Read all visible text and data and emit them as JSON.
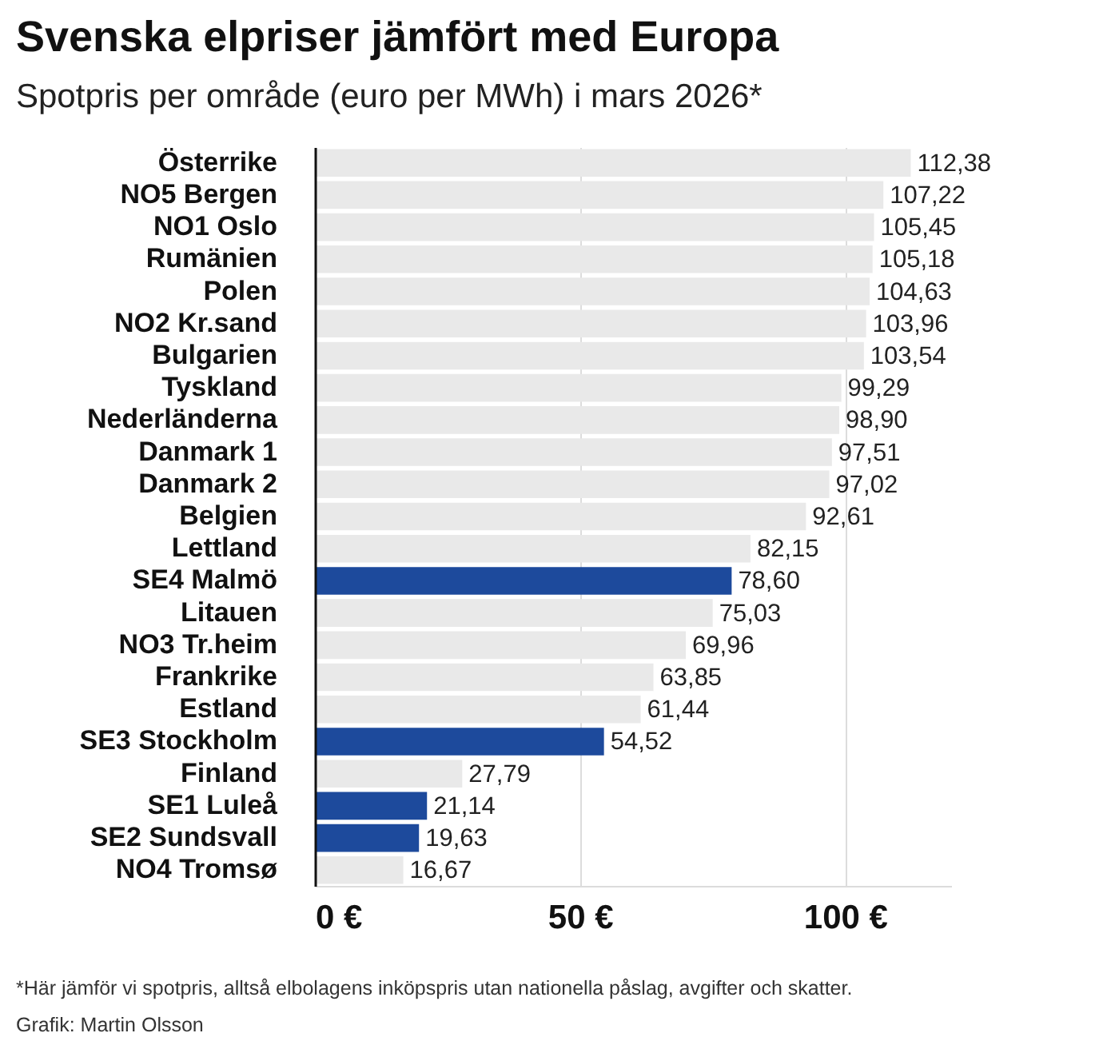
{
  "chart_data": {
    "type": "bar",
    "orientation": "horizontal",
    "title": "Svenska elpriser jämfört med Europa",
    "subtitle": "Spotpris per område (euro per MWh) i mars 2026*",
    "categories": [
      "Österrike",
      "NO5 Bergen",
      "NO1 Oslo",
      "Rumänien",
      "Polen",
      "NO2 Kr.sand",
      "Bulgarien",
      "Tyskland",
      "Nederländerna",
      "Danmark 1",
      "Danmark 2",
      "Belgien",
      "Lettland",
      "SE4 Malmö",
      "Litauen",
      "NO3 Tr.heim",
      "Frankrike",
      "Estland",
      "SE3 Stockholm",
      "Finland",
      "SE1 Luleå",
      "SE2 Sundsvall",
      "NO4 Tromsø"
    ],
    "values": [
      112.38,
      107.22,
      105.45,
      105.18,
      104.63,
      103.96,
      103.54,
      99.29,
      98.9,
      97.51,
      97.02,
      92.61,
      82.15,
      78.6,
      75.03,
      69.96,
      63.85,
      61.44,
      54.52,
      27.79,
      21.14,
      19.63,
      16.67
    ],
    "value_labels": [
      "112,38",
      "107,22",
      "105,45",
      "105,18",
      "104,63",
      "103,96",
      "103,54",
      "99,29",
      "98,90",
      "97,51",
      "97,02",
      "92,61",
      "82,15",
      "78,60",
      "75,03",
      "69,96",
      "63,85",
      "61,44",
      "54,52",
      "27,79",
      "21,14",
      "19,63",
      "16,67"
    ],
    "colors": [
      "#e9e9e9",
      "#e9e9e9",
      "#e9e9e9",
      "#e9e9e9",
      "#e9e9e9",
      "#e9e9e9",
      "#e9e9e9",
      "#e9e9e9",
      "#e9e9e9",
      "#e9e9e9",
      "#e9e9e9",
      "#e9e9e9",
      "#e9e9e9",
      "#1d4a9c",
      "#e9e9e9",
      "#e9e9e9",
      "#e9e9e9",
      "#e9e9e9",
      "#1d4a9c",
      "#e9e9e9",
      "#1d4a9c",
      "#1d4a9c",
      "#e9e9e9"
    ],
    "xlim": [
      0,
      120
    ],
    "xticks": [
      {
        "value": 0,
        "label": "0 €"
      },
      {
        "value": 50,
        "label": "50 €"
      },
      {
        "value": 100,
        "label": "100 €"
      }
    ],
    "grid": "x",
    "annotations": [
      "*Här jämför vi spotpris, alltså elbolagens inköpspris utan nationella påslag, avgifter och skatter.",
      "Grafik: Martin Olsson"
    ]
  }
}
